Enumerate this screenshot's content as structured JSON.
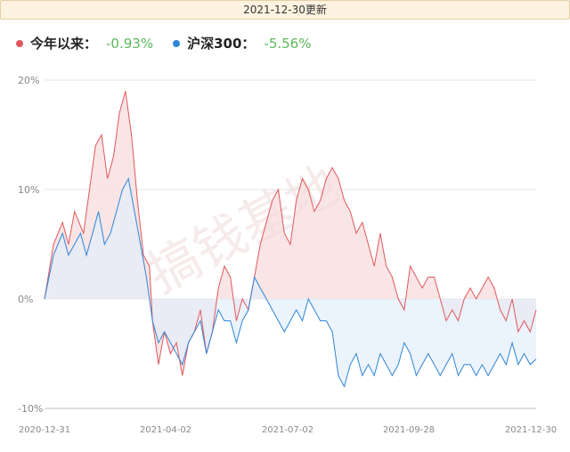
{
  "header": {
    "update_text": "2021-12-30更新"
  },
  "legend": [
    {
      "label": "今年以来：",
      "value": "-0.93%",
      "color": "#e0575b"
    },
    {
      "label": "沪深300：",
      "value": "-5.56%",
      "color": "#2f86d9"
    }
  ],
  "watermark": "搞钱基地",
  "chart_data": {
    "type": "line",
    "ylim": [
      -10,
      20
    ],
    "y_ticks": [
      "20%",
      "10%",
      "0%",
      "-10%"
    ],
    "x_ticks": [
      "2020-12-31",
      "2021-04-02",
      "2021-07-02",
      "2021-09-28",
      "2021-12-30"
    ],
    "grid": true,
    "series": [
      {
        "name": "今年以来",
        "color": "#e0575b",
        "fill": "#f7dadb",
        "points": [
          [
            0,
            0
          ],
          [
            3,
            5
          ],
          [
            6,
            7
          ],
          [
            8,
            5
          ],
          [
            10,
            8
          ],
          [
            13,
            6
          ],
          [
            15,
            10
          ],
          [
            17,
            14
          ],
          [
            19,
            15
          ],
          [
            21,
            11
          ],
          [
            23,
            13
          ],
          [
            25,
            17
          ],
          [
            27,
            19
          ],
          [
            29,
            15
          ],
          [
            31,
            9
          ],
          [
            33,
            4
          ],
          [
            35,
            3
          ],
          [
            36,
            -2
          ],
          [
            38,
            -6
          ],
          [
            40,
            -3
          ],
          [
            42,
            -5
          ],
          [
            44,
            -4
          ],
          [
            46,
            -7
          ],
          [
            48,
            -4
          ],
          [
            50,
            -3
          ],
          [
            52,
            -1
          ],
          [
            54,
            -5
          ],
          [
            56,
            -3
          ],
          [
            58,
            1
          ],
          [
            60,
            3
          ],
          [
            62,
            2
          ],
          [
            64,
            -2
          ],
          [
            66,
            0
          ],
          [
            68,
            -1
          ],
          [
            70,
            2
          ],
          [
            72,
            5
          ],
          [
            74,
            7
          ],
          [
            76,
            9
          ],
          [
            78,
            10
          ],
          [
            80,
            6
          ],
          [
            82,
            5
          ],
          [
            84,
            9
          ],
          [
            86,
            11
          ],
          [
            88,
            10
          ],
          [
            90,
            8
          ],
          [
            92,
            9
          ],
          [
            94,
            11
          ],
          [
            96,
            12
          ],
          [
            98,
            11
          ],
          [
            100,
            9
          ],
          [
            102,
            8
          ],
          [
            104,
            6
          ],
          [
            106,
            7
          ],
          [
            108,
            5
          ],
          [
            110,
            3
          ],
          [
            112,
            6
          ],
          [
            114,
            3
          ],
          [
            116,
            2
          ],
          [
            118,
            0
          ],
          [
            120,
            -1
          ],
          [
            122,
            3
          ],
          [
            124,
            2
          ],
          [
            126,
            1
          ],
          [
            128,
            2
          ],
          [
            130,
            2
          ],
          [
            132,
            0
          ],
          [
            134,
            -2
          ],
          [
            136,
            -1
          ],
          [
            138,
            -2
          ],
          [
            140,
            0
          ],
          [
            142,
            1
          ],
          [
            144,
            0
          ],
          [
            146,
            1
          ],
          [
            148,
            2
          ],
          [
            150,
            1
          ],
          [
            152,
            -1
          ],
          [
            154,
            -2
          ],
          [
            156,
            0
          ],
          [
            158,
            -3
          ],
          [
            160,
            -2
          ],
          [
            162,
            -3
          ],
          [
            164,
            -1
          ]
        ]
      },
      {
        "name": "沪深300",
        "color": "#2f86d9",
        "fill": "#e2eefb",
        "points": [
          [
            0,
            0
          ],
          [
            3,
            4
          ],
          [
            6,
            6
          ],
          [
            8,
            4
          ],
          [
            10,
            5
          ],
          [
            12,
            6
          ],
          [
            14,
            4
          ],
          [
            16,
            6
          ],
          [
            18,
            8
          ],
          [
            20,
            5
          ],
          [
            22,
            6
          ],
          [
            24,
            8
          ],
          [
            26,
            10
          ],
          [
            28,
            11
          ],
          [
            30,
            8
          ],
          [
            32,
            5
          ],
          [
            34,
            2
          ],
          [
            36,
            -2
          ],
          [
            38,
            -4
          ],
          [
            40,
            -3
          ],
          [
            42,
            -4
          ],
          [
            44,
            -5
          ],
          [
            46,
            -6
          ],
          [
            48,
            -4
          ],
          [
            50,
            -3
          ],
          [
            52,
            -2
          ],
          [
            54,
            -5
          ],
          [
            56,
            -3
          ],
          [
            58,
            -1
          ],
          [
            60,
            -2
          ],
          [
            62,
            -2
          ],
          [
            64,
            -4
          ],
          [
            66,
            -2
          ],
          [
            68,
            -1
          ],
          [
            70,
            2
          ],
          [
            72,
            1
          ],
          [
            74,
            0
          ],
          [
            76,
            -1
          ],
          [
            78,
            -2
          ],
          [
            80,
            -3
          ],
          [
            82,
            -2
          ],
          [
            84,
            -1
          ],
          [
            86,
            -2
          ],
          [
            88,
            0
          ],
          [
            90,
            -1
          ],
          [
            92,
            -2
          ],
          [
            94,
            -2
          ],
          [
            96,
            -3
          ],
          [
            98,
            -7
          ],
          [
            100,
            -8
          ],
          [
            102,
            -6
          ],
          [
            104,
            -5
          ],
          [
            106,
            -7
          ],
          [
            108,
            -6
          ],
          [
            110,
            -7
          ],
          [
            112,
            -5
          ],
          [
            114,
            -6
          ],
          [
            116,
            -7
          ],
          [
            118,
            -6
          ],
          [
            120,
            -4
          ],
          [
            122,
            -5
          ],
          [
            124,
            -7
          ],
          [
            126,
            -6
          ],
          [
            128,
            -5
          ],
          [
            130,
            -6
          ],
          [
            132,
            -7
          ],
          [
            134,
            -6
          ],
          [
            136,
            -5
          ],
          [
            138,
            -7
          ],
          [
            140,
            -6
          ],
          [
            142,
            -6
          ],
          [
            144,
            -7
          ],
          [
            146,
            -6
          ],
          [
            148,
            -7
          ],
          [
            150,
            -6
          ],
          [
            152,
            -5
          ],
          [
            154,
            -6
          ],
          [
            156,
            -4
          ],
          [
            158,
            -6
          ],
          [
            160,
            -5
          ],
          [
            162,
            -6
          ],
          [
            164,
            -5.5
          ]
        ]
      }
    ]
  }
}
